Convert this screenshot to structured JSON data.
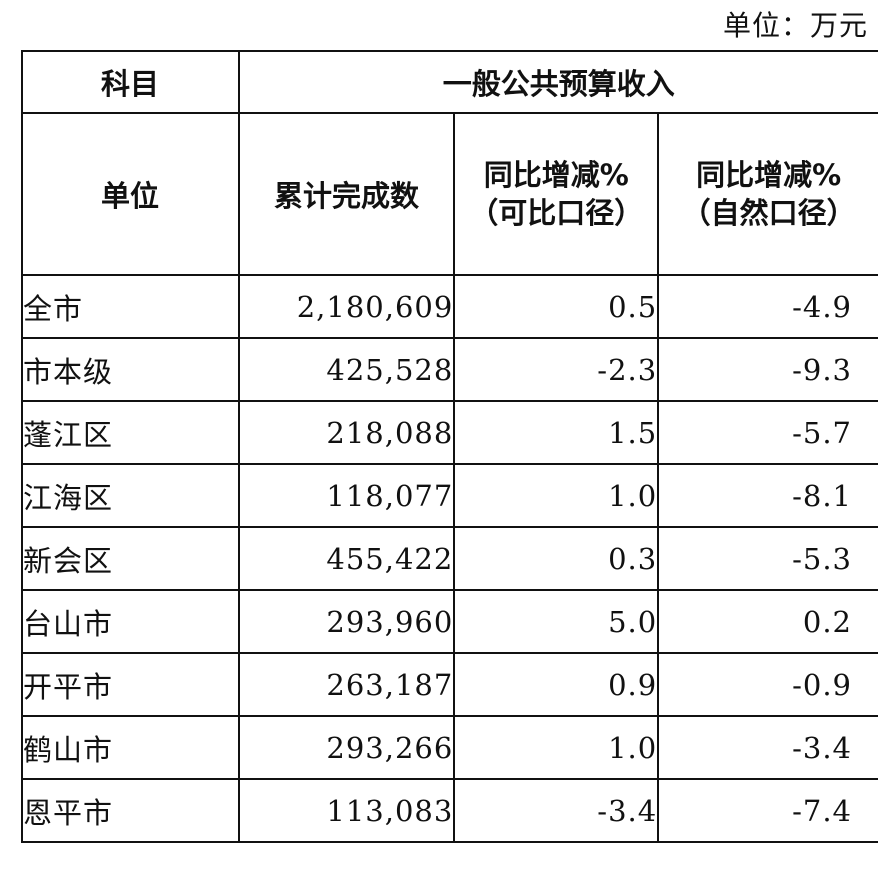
{
  "unit_note": "单位：万元",
  "header": {
    "subject_label": "科目",
    "group_label": "一般公共预算收入",
    "unit_label": "单位",
    "cumulative_label": "累计完成数",
    "yoy_comparable": [
      "同比增减%",
      "（可比口径）"
    ],
    "yoy_natural": [
      "同比增减%",
      "（自然口径）"
    ]
  },
  "rows": [
    {
      "unit": "全市",
      "cumulative": "2,180,609",
      "yoy_comparable": "0.5",
      "yoy_natural": "-4.9"
    },
    {
      "unit": "市本级",
      "cumulative": "425,528",
      "yoy_comparable": "-2.3",
      "yoy_natural": "-9.3"
    },
    {
      "unit": "蓬江区",
      "cumulative": "218,088",
      "yoy_comparable": "1.5",
      "yoy_natural": "-5.7"
    },
    {
      "unit": "江海区",
      "cumulative": "118,077",
      "yoy_comparable": "1.0",
      "yoy_natural": "-8.1"
    },
    {
      "unit": "新会区",
      "cumulative": "455,422",
      "yoy_comparable": "0.3",
      "yoy_natural": "-5.3"
    },
    {
      "unit": "台山市",
      "cumulative": "293,960",
      "yoy_comparable": "5.0",
      "yoy_natural": "0.2"
    },
    {
      "unit": "开平市",
      "cumulative": "263,187",
      "yoy_comparable": "0.9",
      "yoy_natural": "-0.9"
    },
    {
      "unit": "鹤山市",
      "cumulative": "293,266",
      "yoy_comparable": "1.0",
      "yoy_natural": "-3.4"
    },
    {
      "unit": "恩平市",
      "cumulative": "113,083",
      "yoy_comparable": "-3.4",
      "yoy_natural": "-7.4"
    }
  ]
}
